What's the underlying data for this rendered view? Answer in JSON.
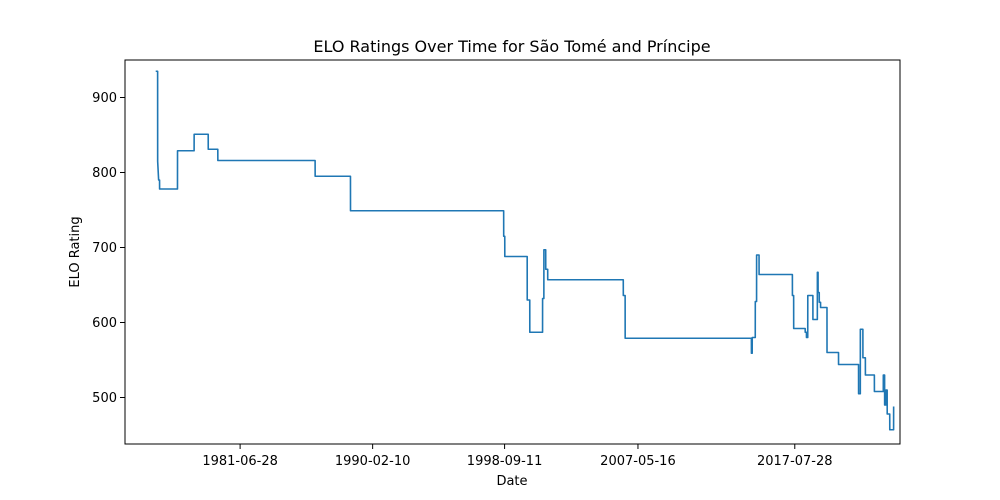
{
  "chart_data": {
    "type": "line",
    "title": "ELO Ratings Over Time for São Tomé and Príncipe",
    "xlabel": "Date",
    "ylabel": "ELO Rating",
    "x_axis": "date",
    "xlim": [
      "1974-01-01",
      "2024-06-01"
    ],
    "ylim": [
      438,
      950
    ],
    "x_ticks": [
      "1981-06-28",
      "1990-02-10",
      "1998-09-11",
      "2007-05-16",
      "2017-07-28"
    ],
    "y_ticks": [
      500,
      600,
      700,
      800,
      900
    ],
    "grid": false,
    "line_color": "#1f77b4",
    "series": [
      {
        "x": [
          "1976-01-01",
          "1976-02-15",
          "1976-02-16",
          "1976-03-10",
          "1976-04-01",
          "1976-04-02",
          "1977-06-01",
          "1977-06-02",
          "1978-07-01",
          "1978-07-02",
          "1979-06-01",
          "1979-06-02",
          "1980-01-15",
          "1980-01-16",
          "1980-02-01",
          "1980-02-02",
          "1981-02-01",
          "1981-02-02",
          "1986-05-15",
          "1986-05-16",
          "1988-09-01",
          "1988-09-02",
          "1998-08-20",
          "1998-08-21",
          "1998-09-15",
          "1998-09-16",
          "2000-03-01",
          "2000-03-02",
          "2000-05-01",
          "2000-05-02",
          "2001-03-01",
          "2001-03-02",
          "2001-04-01",
          "2001-04-02",
          "2001-05-15",
          "2001-05-16",
          "2001-07-01",
          "2001-07-02",
          "2006-06-01",
          "2006-06-02",
          "2006-07-15",
          "2006-07-16",
          "2014-10-01",
          "2014-10-02",
          "2014-10-20",
          "2014-10-21",
          "2015-01-01",
          "2015-01-02",
          "2015-02-01",
          "2015-02-02",
          "2015-04-01",
          "2015-04-02",
          "2015-06-15",
          "2015-06-16",
          "2017-06-01",
          "2017-06-02",
          "2017-07-01",
          "2017-07-02",
          "2018-04-01",
          "2018-04-02",
          "2018-05-01",
          "2018-05-02",
          "2018-06-01",
          "2018-06-02",
          "2018-10-01",
          "2018-10-02",
          "2019-01-15",
          "2019-01-16",
          "2019-02-01",
          "2019-02-02",
          "2019-03-01",
          "2019-03-02",
          "2019-04-01",
          "2019-04-02",
          "2019-05-15",
          "2019-05-16",
          "2019-09-01",
          "2019-09-02",
          "2020-06-01",
          "2020-06-02",
          "2021-09-01",
          "2021-09-02",
          "2021-09-20",
          "2021-09-21",
          "2021-11-01",
          "2021-11-02",
          "2022-01-01",
          "2022-01-02",
          "2022-03-01",
          "2022-03-02",
          "2022-10-01",
          "2022-10-02",
          "2022-11-01",
          "2022-11-02",
          "2023-05-01",
          "2023-05-02",
          "2023-06-01",
          "2023-06-02",
          "2023-07-01",
          "2023-07-02",
          "2023-08-01",
          "2023-08-02",
          "2023-10-01",
          "2023-10-02",
          "2024-01-01",
          "2024-01-02"
        ],
        "y": [
          935,
          935,
          815,
          790,
          790,
          778,
          778,
          829,
          829,
          851,
          851,
          831,
          831,
          816,
          816,
          816,
          816,
          816,
          816,
          795,
          795,
          749,
          749,
          715,
          715,
          688,
          688,
          630,
          630,
          587,
          587,
          632,
          632,
          697,
          697,
          671,
          671,
          657,
          657,
          636,
          636,
          579,
          579,
          559,
          559,
          580,
          580,
          628,
          628,
          690,
          690,
          664,
          664,
          664,
          664,
          636,
          636,
          592,
          592,
          587,
          587,
          580,
          580,
          636,
          636,
          604,
          604,
          667,
          667,
          640,
          640,
          627,
          627,
          620,
          620,
          620,
          620,
          560,
          560,
          544,
          544,
          544,
          544,
          505,
          505,
          591,
          591,
          553,
          553,
          530,
          530,
          508,
          508,
          508,
          508,
          530,
          530,
          490,
          490,
          510,
          510,
          478,
          478,
          457,
          457,
          488
        ]
      }
    ]
  }
}
